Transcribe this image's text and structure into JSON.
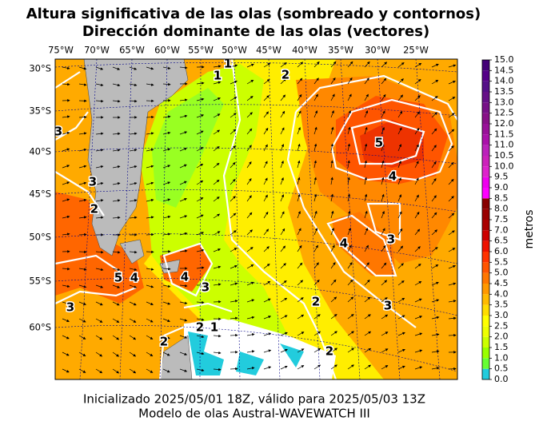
{
  "header": {
    "title_line_1": "Altura significativa de las olas (sombreado y contornos)",
    "title_line_2": "Dirección dominante de las olas (vectores)"
  },
  "map": {
    "longitude_labels": [
      "75°W",
      "70°W",
      "65°W",
      "60°W",
      "55°W",
      "50°W",
      "45°W",
      "40°W",
      "35°W",
      "30°W",
      "25°W"
    ],
    "latitude_labels": [
      "30°S",
      "35°S",
      "40°S",
      "45°S",
      "50°S",
      "55°S",
      "60°S"
    ],
    "contour_labels": [
      "5",
      "4",
      "4",
      "3",
      "3",
      "2",
      "2",
      "2",
      "4",
      "3",
      "5",
      "4",
      "3",
      "3",
      "3",
      "2",
      "2",
      "1",
      "2",
      "1",
      "1"
    ]
  },
  "colorbar": {
    "label": "metros",
    "lim": [
      0,
      15
    ],
    "ticks": [
      {
        "value": 0,
        "label": "0.0"
      },
      {
        "value": 0.5,
        "label": "0.5"
      },
      {
        "value": 1,
        "label": "1.0"
      },
      {
        "value": 1.5,
        "label": "1.5"
      },
      {
        "value": 2,
        "label": "2.0"
      },
      {
        "value": 2.5,
        "label": "2.5"
      },
      {
        "value": 3,
        "label": "3.0"
      },
      {
        "value": 3.5,
        "label": "3.5"
      },
      {
        "value": 4,
        "label": "4.0"
      },
      {
        "value": 4.5,
        "label": "4.5"
      },
      {
        "value": 5,
        "label": "5.0"
      },
      {
        "value": 5.5,
        "label": "5.5"
      },
      {
        "value": 6,
        "label": "6.0"
      },
      {
        "value": 6.5,
        "label": "6.5"
      },
      {
        "value": 7,
        "label": "7.0"
      },
      {
        "value": 7.5,
        "label": "7.5"
      },
      {
        "value": 8,
        "label": "8.0"
      },
      {
        "value": 8.5,
        "label": "8.5"
      },
      {
        "value": 9,
        "label": "9.0"
      },
      {
        "value": 9.5,
        "label": "9.5"
      },
      {
        "value": 10,
        "label": "10.0"
      },
      {
        "value": 10.5,
        "label": "10.5"
      },
      {
        "value": 11,
        "label": "11.0"
      },
      {
        "value": 11.5,
        "label": "11.5"
      },
      {
        "value": 12,
        "label": "12.0"
      },
      {
        "value": 12.5,
        "label": "12.5"
      },
      {
        "value": 13,
        "label": "13.0"
      },
      {
        "value": 13.5,
        "label": "13.5"
      },
      {
        "value": 14,
        "label": "14.0"
      },
      {
        "value": 14.5,
        "label": "14.5"
      },
      {
        "value": 15,
        "label": "15.0"
      }
    ],
    "colors": [
      "#22ccdd",
      "#66ff33",
      "#99ff00",
      "#ccff00",
      "#eeff00",
      "#ffff00",
      "#ffdd00",
      "#ffbb00",
      "#ff9900",
      "#ff7700",
      "#ff5500",
      "#ff3300",
      "#ee1100",
      "#cc0000",
      "#aa0000",
      "#990000",
      "#880000",
      "#ff00ff",
      "#ee00ee",
      "#dd22cc",
      "#cc22bb",
      "#bb22bb",
      "#aa11aa",
      "#991199",
      "#881188",
      "#771188",
      "#661188",
      "#551188",
      "#550088",
      "#440077"
    ]
  },
  "footer": {
    "line_1": "Inicializado 2025/05/01 18Z, válido para 2025/05/03 13Z",
    "line_2": "Modelo de olas Austral-WAVEWATCH III"
  }
}
